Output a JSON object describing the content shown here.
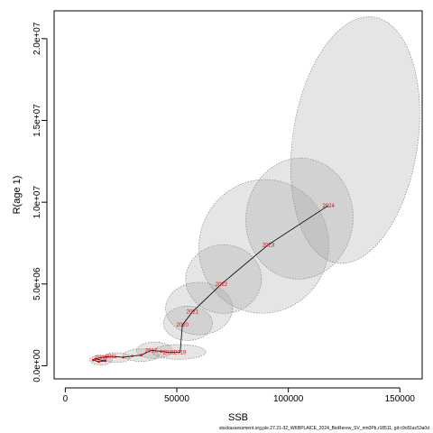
{
  "chart_data": {
    "type": "scatter",
    "xlabel": "SSB",
    "ylabel": "R(age 1)",
    "xlim": [
      -5000,
      160000
    ],
    "ylim": [
      -800000,
      21700000
    ],
    "x_ticks": [
      0,
      50000,
      100000,
      150000
    ],
    "x_tick_labels": [
      "0",
      "50000",
      "100000",
      "150000"
    ],
    "y_ticks": [
      0,
      5000000,
      10000000,
      15000000,
      20000000
    ],
    "y_tick_labels": [
      "0.0e+00",
      "5.0e+06",
      "1.0e+07",
      "1.5e+07",
      "2.0e+07"
    ],
    "grid": false,
    "point_color": "#ee0000",
    "line_color": "#000000",
    "ellipse_fill": "rgba(160,160,160,0.28)",
    "ellipse_stroke": "#777777",
    "points": [
      {
        "label": "",
        "ssb": 12500,
        "rec": 350000
      },
      {
        "label": "",
        "ssb": 15000,
        "rec": 250000
      },
      {
        "label": "",
        "ssb": 18000,
        "rec": 300000
      },
      {
        "label": "",
        "ssb": 13500,
        "rec": 420000
      },
      {
        "label": "2008",
        "ssb": 16000,
        "rec": 500000
      },
      {
        "label": "2011",
        "ssb": 20500,
        "rec": 580000
      },
      {
        "label": "",
        "ssb": 26000,
        "rec": 520000
      },
      {
        "label": "",
        "ssb": 30000,
        "rec": 600000
      },
      {
        "label": "",
        "ssb": 34000,
        "rec": 650000
      },
      {
        "label": "2017",
        "ssb": 38500,
        "rec": 950000
      },
      {
        "label": "",
        "ssb": 43000,
        "rec": 880000
      },
      {
        "label": "2018",
        "ssb": 46500,
        "rec": 820000
      },
      {
        "label": "2019",
        "ssb": 51500,
        "rec": 820000
      },
      {
        "label": "2020",
        "ssb": 52500,
        "rec": 2500000
      },
      {
        "label": "2021",
        "ssb": 57000,
        "rec": 3300000
      },
      {
        "label": "2022",
        "ssb": 70000,
        "rec": 5000000
      },
      {
        "label": "2023",
        "ssb": 91000,
        "rec": 7400000
      },
      {
        "label": "2024",
        "ssb": 118000,
        "rec": 9800000
      }
    ],
    "ellipses": [
      {
        "cx": 16000,
        "cy": 350000,
        "rx": 5000,
        "ry": 300000,
        "rot": 0
      },
      {
        "cx": 23000,
        "cy": 500000,
        "rx": 6000,
        "ry": 300000,
        "rot": 0
      },
      {
        "cx": 34000,
        "cy": 650000,
        "rx": 8000,
        "ry": 380000,
        "rot": 0
      },
      {
        "cx": 40000,
        "cy": 950000,
        "rx": 8000,
        "ry": 500000,
        "rot": 0
      },
      {
        "cx": 51000,
        "cy": 850000,
        "rx": 12000,
        "ry": 450000,
        "rot": 0
      },
      {
        "cx": 55000,
        "cy": 2600000,
        "rx": 11000,
        "ry": 1050000,
        "rot": 0
      },
      {
        "cx": 60000,
        "cy": 3500000,
        "rx": 15000,
        "ry": 1600000,
        "rot": 0
      },
      {
        "cx": 71000,
        "cy": 5300000,
        "rx": 17000,
        "ry": 2100000,
        "rot": 0
      },
      {
        "cx": 89000,
        "cy": 7300000,
        "rx": 29000,
        "ry": 4100000,
        "rot": 0.35
      },
      {
        "cx": 105000,
        "cy": 9000000,
        "rx": 24000,
        "ry": 3700000,
        "rot": 0.1
      },
      {
        "cx": 130000,
        "cy": 13800000,
        "rx": 28000,
        "ry": 7600000,
        "rot": 0.15
      }
    ]
  },
  "footer": {
    "text": "stockassessment.org,ple.27.21-32_WKBPLAICE_2024_BioRerew_SV_nm0Pb,r18511, git:c9c81ac53a0d"
  }
}
